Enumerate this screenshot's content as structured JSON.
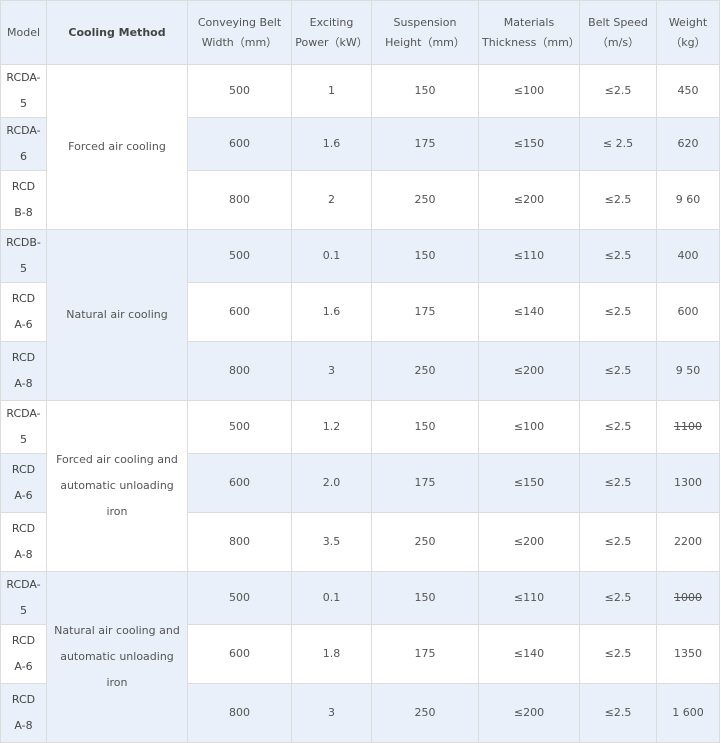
{
  "headers": [
    "Model",
    "Cooling Method",
    "Conveying Belt Width（mm）",
    "Exciting Power（kW）",
    "Suspension Height（mm）",
    "Materials Thickness（mm）",
    "Belt Speed（m/s）",
    "Weight（kg）"
  ],
  "groups": [
    {
      "cooling": "Forced air cooling",
      "rows": [
        {
          "model": "RCDA-5",
          "width": "500",
          "power": "1",
          "height": "150",
          "thickness": "≤100",
          "speed": "≤2.5",
          "weight": "450"
        },
        {
          "model": "RCDA-6",
          "width": "600",
          "power": "1.6",
          "height": "175",
          "thickness": "≤150",
          "speed": "≤ 2.5",
          "weight": "620"
        },
        {
          "model": "RCDB-8",
          "width": "800",
          "power": "2",
          "height": "250",
          "thickness": "≤200",
          "speed": "≤2.5",
          "weight": "9 60"
        }
      ]
    },
    {
      "cooling": "Natural air cooling",
      "rows": [
        {
          "model": "RCDB-5",
          "width": "500",
          "power": "0.1",
          "height": "150",
          "thickness": "≤110",
          "speed": "≤2.5",
          "weight": "400"
        },
        {
          "model": "RCDA-6",
          "width": "600",
          "power": "1.6",
          "height": "175",
          "thickness": "≤140",
          "speed": "≤2.5",
          "weight": "600"
        },
        {
          "model": "RCDA-8",
          "width": "800",
          "power": "3",
          "height": "250",
          "thickness": "≤200",
          "speed": "≤2.5",
          "weight": "9 50"
        }
      ]
    },
    {
      "cooling": "Forced air cooling and automatic unloading iron",
      "rows": [
        {
          "model": "RCDA-5",
          "width": "500",
          "power": "1.2",
          "height": "150",
          "thickness": "≤100",
          "speed": "≤2.5",
          "weight": "1100",
          "weight_strikethrough": true
        },
        {
          "model": "RCDA-6",
          "width": "600",
          "power": "2.0",
          "height": "175",
          "thickness": "≤150",
          "speed": "≤2.5",
          "weight": "1300"
        },
        {
          "model": "RCDA-8",
          "width": "800",
          "power": "3.5",
          "height": "250",
          "thickness": "≤200",
          "speed": "≤2.5",
          "weight": "2200"
        }
      ]
    },
    {
      "cooling": "Natural air cooling and automatic unloading iron",
      "rows": [
        {
          "model": "RCDA-5",
          "width": "500",
          "power": "0.1",
          "height": "150",
          "thickness": "≤110",
          "speed": "≤2.5",
          "weight": "1000",
          "weight_strikethrough": true
        },
        {
          "model": "RCDA-6",
          "width": "600",
          "power": "1.8",
          "height": "175",
          "thickness": "≤140",
          "speed": "≤2.5",
          "weight": "1350"
        },
        {
          "model": "RCDA-8",
          "width": "800",
          "power": "3",
          "height": "250",
          "thickness": "≤200",
          "speed": "≤2.5",
          "weight": "1 600"
        }
      ]
    }
  ]
}
